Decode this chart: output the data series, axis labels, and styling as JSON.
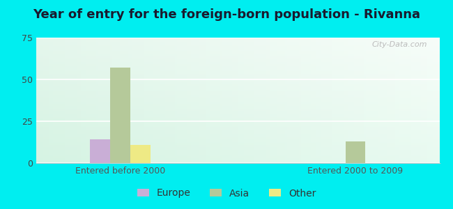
{
  "title": "Year of entry for the foreign-born population - Rivanna",
  "categories": [
    "Entered before 2000",
    "Entered 2000 to 2009"
  ],
  "series": {
    "Europe": [
      14,
      0
    ],
    "Asia": [
      57,
      13
    ],
    "Other": [
      11,
      0
    ]
  },
  "colors": {
    "Europe": "#c9aed6",
    "Asia": "#b5c99a",
    "Other": "#eeea85"
  },
  "ylim": [
    0,
    75
  ],
  "yticks": [
    0,
    25,
    50,
    75
  ],
  "bar_width": 0.12,
  "outer_bg": "#00eef0",
  "plot_bg_left": "#d0f0e0",
  "plot_bg_right": "#edfdf5",
  "watermark": "City-Data.com",
  "title_fontsize": 13,
  "tick_fontsize": 9,
  "legend_fontsize": 10
}
